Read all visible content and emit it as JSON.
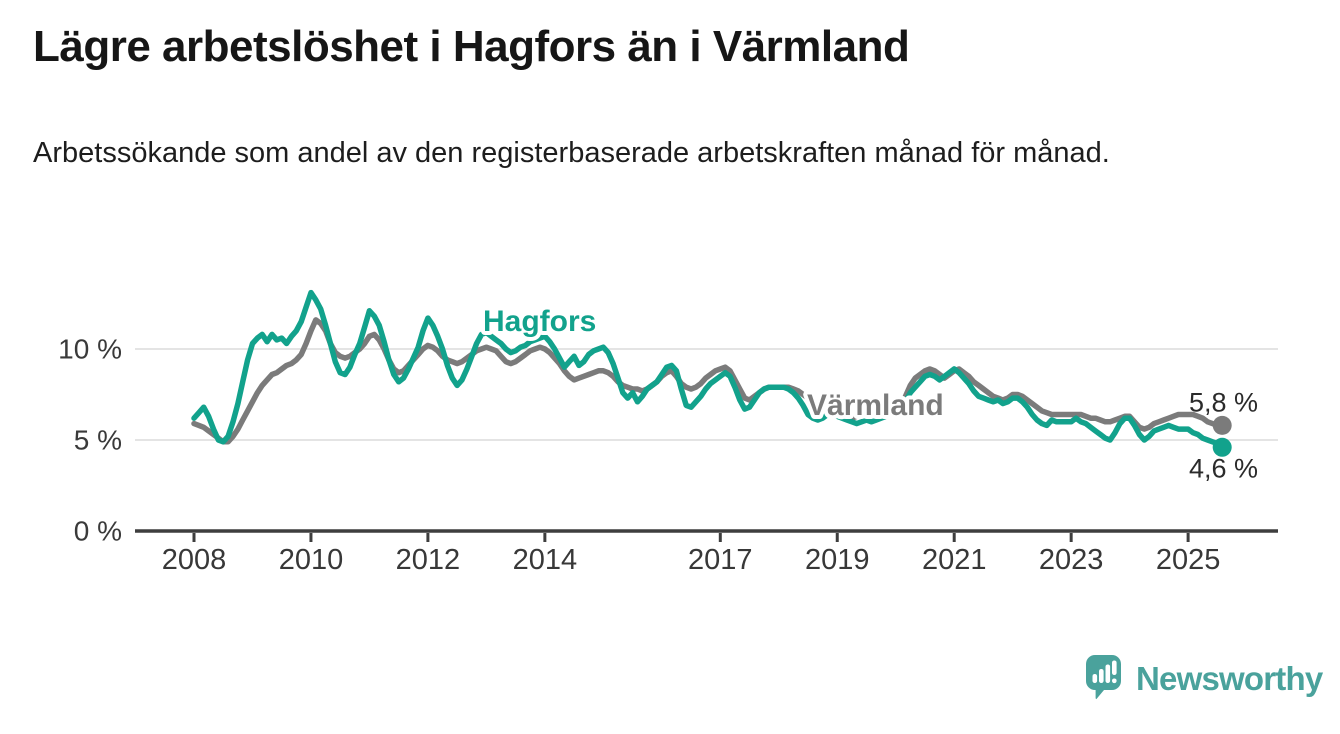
{
  "header": {
    "title": "Lägre arbetslöshet i Hagfors än i Värmland",
    "subtitle": "Arbetssökande som andel av den registerbaserade arbetskraften månad för månad."
  },
  "chart_data": {
    "type": "line",
    "unit": "%",
    "frequency": "monthly",
    "x_start_year": 2008,
    "x_end_label": "2025",
    "ylim": [
      0,
      13.5
    ],
    "grid": "horizontal-only",
    "y_ticks": [
      {
        "value": 0,
        "label": "0 %"
      },
      {
        "value": 5,
        "label": "5 %"
      },
      {
        "value": 10,
        "label": "10 %"
      }
    ],
    "x_ticks": [
      {
        "label": "2008",
        "month_index": 0
      },
      {
        "label": "2010",
        "month_index": 24
      },
      {
        "label": "2012",
        "month_index": 48
      },
      {
        "label": "2014",
        "month_index": 72
      },
      {
        "label": "2017",
        "month_index": 108
      },
      {
        "label": "2019",
        "month_index": 132
      },
      {
        "label": "2021",
        "month_index": 156
      },
      {
        "label": "2023",
        "month_index": 180
      },
      {
        "label": "2025",
        "month_index": 204
      }
    ],
    "series": [
      {
        "name": "Värmland",
        "slug": "varmland",
        "color": "#7b7b7b",
        "end_label": "5,8 %",
        "end_value": 5.8,
        "end_label_side": "above",
        "values": [
          5.9,
          5.8,
          5.7,
          5.5,
          5.3,
          5.1,
          4.9,
          4.9,
          5.2,
          5.6,
          6.1,
          6.6,
          7.1,
          7.6,
          8.0,
          8.3,
          8.6,
          8.7,
          8.9,
          9.1,
          9.2,
          9.4,
          9.7,
          10.3,
          11.0,
          11.6,
          11.4,
          11.0,
          10.3,
          9.8,
          9.6,
          9.5,
          9.6,
          9.8,
          10.0,
          10.3,
          10.7,
          10.8,
          10.5,
          10.0,
          9.4,
          8.9,
          8.7,
          8.8,
          9.1,
          9.4,
          9.7,
          10.0,
          10.2,
          10.1,
          9.9,
          9.6,
          9.4,
          9.3,
          9.2,
          9.3,
          9.5,
          9.7,
          9.9,
          10.0,
          10.1,
          10.0,
          9.9,
          9.6,
          9.3,
          9.2,
          9.3,
          9.5,
          9.7,
          9.9,
          10.0,
          10.1,
          10.0,
          9.8,
          9.5,
          9.2,
          8.8,
          8.5,
          8.3,
          8.4,
          8.5,
          8.6,
          8.7,
          8.8,
          8.8,
          8.7,
          8.5,
          8.2,
          8.0,
          7.9,
          7.8,
          7.8,
          7.7,
          7.8,
          8.0,
          8.2,
          8.5,
          8.7,
          8.8,
          8.5,
          8.1,
          7.9,
          7.8,
          7.9,
          8.1,
          8.4,
          8.6,
          8.8,
          8.9,
          9.0,
          8.8,
          8.3,
          7.8,
          7.3,
          7.2,
          7.4,
          7.6,
          7.8,
          7.9,
          7.9,
          7.9,
          7.9,
          7.9,
          7.8,
          7.7,
          7.5,
          7.3,
          7.1,
          6.9,
          6.7,
          6.5,
          6.4,
          6.3,
          6.3,
          6.2,
          6.2,
          6.3,
          6.3,
          6.4,
          6.4,
          6.4,
          6.5,
          6.5,
          6.5,
          6.6,
          6.8,
          7.4,
          8.0,
          8.4,
          8.6,
          8.8,
          8.9,
          8.8,
          8.6,
          8.4,
          8.6,
          8.8,
          8.9,
          8.7,
          8.5,
          8.2,
          8.0,
          7.8,
          7.6,
          7.4,
          7.3,
          7.2,
          7.3,
          7.5,
          7.5,
          7.4,
          7.2,
          7.0,
          6.8,
          6.6,
          6.5,
          6.4,
          6.4,
          6.4,
          6.4,
          6.4,
          6.4,
          6.4,
          6.3,
          6.2,
          6.2,
          6.1,
          6.0,
          6.0,
          6.1,
          6.2,
          6.3,
          6.3,
          6.0,
          5.7,
          5.6,
          5.7,
          5.9,
          6.0,
          6.1,
          6.2,
          6.3,
          6.4,
          6.4,
          6.4,
          6.4,
          6.3,
          6.2,
          6.0,
          5.9,
          5.8,
          5.8
        ]
      },
      {
        "name": "Hagfors",
        "slug": "hagfors",
        "color": "#12a28c",
        "end_label": "4,6 %",
        "end_value": 4.6,
        "end_label_side": "below",
        "values": [
          6.2,
          6.5,
          6.8,
          6.3,
          5.6,
          5.0,
          4.9,
          5.2,
          6.0,
          7.0,
          8.2,
          9.4,
          10.3,
          10.6,
          10.8,
          10.4,
          10.8,
          10.5,
          10.6,
          10.3,
          10.7,
          11.0,
          11.5,
          12.3,
          13.1,
          12.7,
          12.2,
          11.3,
          10.3,
          9.3,
          8.7,
          8.6,
          9.0,
          9.7,
          10.3,
          11.2,
          12.1,
          11.8,
          11.3,
          10.4,
          9.4,
          8.6,
          8.2,
          8.4,
          8.9,
          9.5,
          10.1,
          11.0,
          11.7,
          11.3,
          10.7,
          10.0,
          9.1,
          8.4,
          8.0,
          8.3,
          8.9,
          9.6,
          10.3,
          10.8,
          10.9,
          10.7,
          10.5,
          10.3,
          10.0,
          9.8,
          9.9,
          10.1,
          10.2,
          10.4,
          10.5,
          10.6,
          10.7,
          10.4,
          10.0,
          9.5,
          9.0,
          9.3,
          9.6,
          9.1,
          9.3,
          9.7,
          9.9,
          10.0,
          10.1,
          9.8,
          9.2,
          8.4,
          7.6,
          7.3,
          7.6,
          7.1,
          7.4,
          7.8,
          8.0,
          8.2,
          8.6,
          9.0,
          9.1,
          8.8,
          7.8,
          6.9,
          6.8,
          7.1,
          7.4,
          7.8,
          8.1,
          8.3,
          8.5,
          8.7,
          8.5,
          7.9,
          7.2,
          6.7,
          6.8,
          7.2,
          7.6,
          7.8,
          7.9,
          7.9,
          7.9,
          7.9,
          7.8,
          7.6,
          7.3,
          6.9,
          6.4,
          6.2,
          6.1,
          6.2,
          6.4,
          6.4,
          6.3,
          6.2,
          6.1,
          6.0,
          5.9,
          6.0,
          6.1,
          6.0,
          6.1,
          6.2,
          6.3,
          6.4,
          6.5,
          6.7,
          7.1,
          7.6,
          7.9,
          8.2,
          8.5,
          8.6,
          8.5,
          8.3,
          8.5,
          8.7,
          8.9,
          8.7,
          8.4,
          8.1,
          7.7,
          7.4,
          7.3,
          7.2,
          7.1,
          7.2,
          7.0,
          7.1,
          7.3,
          7.3,
          7.1,
          6.8,
          6.4,
          6.1,
          5.9,
          5.8,
          6.1,
          6.0,
          6.0,
          6.0,
          6.0,
          6.2,
          6.0,
          5.9,
          5.7,
          5.5,
          5.3,
          5.1,
          5.0,
          5.4,
          5.9,
          6.2,
          6.2,
          5.8,
          5.3,
          5.0,
          5.2,
          5.5,
          5.6,
          5.7,
          5.8,
          5.7,
          5.6,
          5.6,
          5.6,
          5.4,
          5.3,
          5.1,
          5.0,
          4.9,
          4.8,
          4.6
        ]
      }
    ]
  },
  "colors": {
    "hagfors_teal": "#12a28c",
    "varmland_gray": "#7b7b7b",
    "gridline": "#dcdcdc",
    "axis": "#3e3e3e",
    "logo_teal": "#4aa29c"
  },
  "footer": {
    "logo_text": "Newsworthy"
  }
}
